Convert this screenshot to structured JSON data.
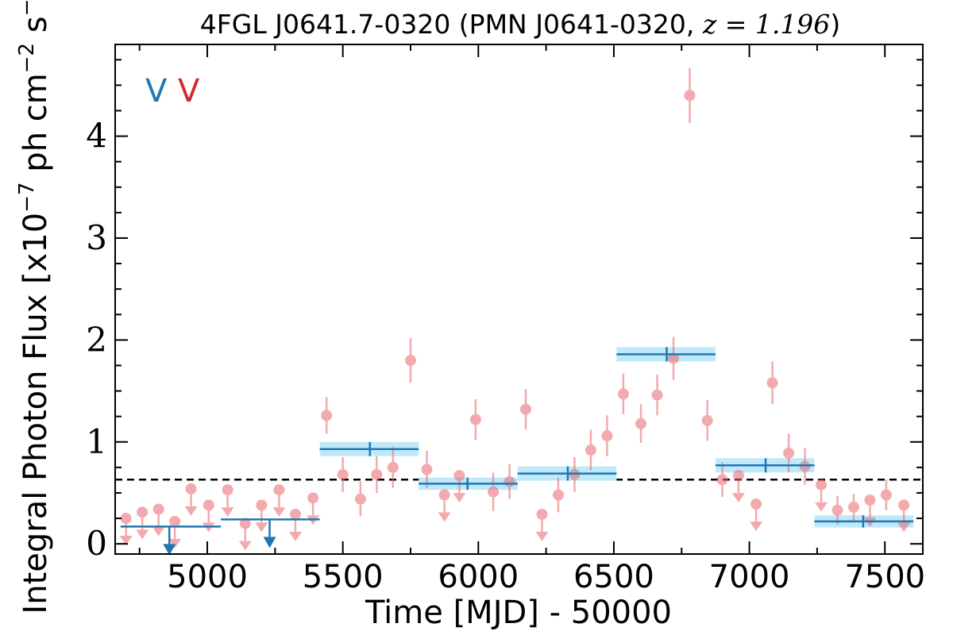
{
  "chart_data": {
    "type": "scatter",
    "title": "4FGL J0641.7-0320 (PMN J0641-0320, ",
    "title_redshift": "z = 1.196",
    "title_close": ")",
    "xlabel": "Time [MJD] - 50000",
    "ylabel": "Integral Photon Flux [x10",
    "ylabel_exp1": "−7",
    "ylabel_mid": " ph cm",
    "ylabel_exp2": "−2",
    "ylabel_mid2": " s",
    "ylabel_exp3": "−1",
    "ylabel_close": "]",
    "xlim": [
      4660,
      7640
    ],
    "ylim": [
      -0.1,
      4.9
    ],
    "xticks": [
      5000,
      5500,
      6000,
      6500,
      7000,
      7500
    ],
    "xticklabels": [
      "5000",
      "5500",
      "6000",
      "6500",
      "7000",
      "7500"
    ],
    "yticks": [
      0,
      1,
      2,
      3,
      4
    ],
    "yticklabels": [
      "0",
      "1",
      "2",
      "3",
      "4"
    ],
    "legend": [
      {
        "label": "V",
        "color": "#1f77b4"
      },
      {
        "label": "V",
        "color": "#d62728"
      }
    ],
    "mean_flux": 0.63,
    "colors": {
      "monthly": "#e8666c",
      "band_line": "#1f77b4",
      "band_fill": "#bfe9f9",
      "mean_line": "#000000"
    },
    "monthly_detections": [
      {
        "x": 5440,
        "y": 1.26,
        "err": 0.18
      },
      {
        "x": 5500,
        "y": 0.68,
        "err": 0.17
      },
      {
        "x": 5565,
        "y": 0.44,
        "err": 0.17
      },
      {
        "x": 5625,
        "y": 0.68,
        "err": 0.18
      },
      {
        "x": 5685,
        "y": 0.75,
        "err": 0.2
      },
      {
        "x": 5750,
        "y": 1.8,
        "err": 0.22
      },
      {
        "x": 5810,
        "y": 0.73,
        "err": 0.18
      },
      {
        "x": 5990,
        "y": 1.22,
        "err": 0.2
      },
      {
        "x": 6055,
        "y": 0.51,
        "err": 0.19
      },
      {
        "x": 6115,
        "y": 0.61,
        "err": 0.17
      },
      {
        "x": 6175,
        "y": 1.32,
        "err": 0.2
      },
      {
        "x": 6295,
        "y": 0.48,
        "err": 0.17
      },
      {
        "x": 6355,
        "y": 0.68,
        "err": 0.17
      },
      {
        "x": 6415,
        "y": 0.92,
        "err": 0.2
      },
      {
        "x": 6475,
        "y": 1.06,
        "err": 0.2
      },
      {
        "x": 6535,
        "y": 1.47,
        "err": 0.2
      },
      {
        "x": 6600,
        "y": 1.18,
        "err": 0.19
      },
      {
        "x": 6660,
        "y": 1.46,
        "err": 0.2
      },
      {
        "x": 6720,
        "y": 1.82,
        "err": 0.21
      },
      {
        "x": 6780,
        "y": 4.4,
        "err": 0.27
      },
      {
        "x": 6845,
        "y": 1.21,
        "err": 0.2
      },
      {
        "x": 6900,
        "y": 0.63,
        "err": 0.17
      },
      {
        "x": 7085,
        "y": 1.58,
        "err": 0.21
      },
      {
        "x": 7145,
        "y": 0.89,
        "err": 0.19
      },
      {
        "x": 7205,
        "y": 0.76,
        "err": 0.18
      },
      {
        "x": 7325,
        "y": 0.33,
        "err": 0.14
      },
      {
        "x": 7385,
        "y": 0.36,
        "err": 0.13
      },
      {
        "x": 7505,
        "y": 0.48,
        "err": 0.15
      }
    ],
    "monthly_upper_limits": [
      {
        "x": 4700,
        "y": 0.25
      },
      {
        "x": 4760,
        "y": 0.31
      },
      {
        "x": 4820,
        "y": 0.34
      },
      {
        "x": 4880,
        "y": 0.22
      },
      {
        "x": 4940,
        "y": 0.54
      },
      {
        "x": 5005,
        "y": 0.38
      },
      {
        "x": 5075,
        "y": 0.53
      },
      {
        "x": 5140,
        "y": 0.2
      },
      {
        "x": 5200,
        "y": 0.38
      },
      {
        "x": 5265,
        "y": 0.53
      },
      {
        "x": 5325,
        "y": 0.29
      },
      {
        "x": 5390,
        "y": 0.45
      },
      {
        "x": 5875,
        "y": 0.48
      },
      {
        "x": 5930,
        "y": 0.67
      },
      {
        "x": 6235,
        "y": 0.29
      },
      {
        "x": 6960,
        "y": 0.67
      },
      {
        "x": 7025,
        "y": 0.39
      },
      {
        "x": 7265,
        "y": 0.58
      },
      {
        "x": 7445,
        "y": 0.43
      },
      {
        "x": 7570,
        "y": 0.38
      }
    ],
    "band_bins": [
      {
        "x0": 4680,
        "x1": 5050,
        "xc": 4860,
        "y": 0.17,
        "err": 0.0,
        "upper_limit": true
      },
      {
        "x0": 5050,
        "x1": 5415,
        "xc": 5230,
        "y": 0.24,
        "err": 0.0,
        "upper_limit": true
      },
      {
        "x0": 5415,
        "x1": 5780,
        "xc": 5600,
        "y": 0.93,
        "err": 0.07,
        "upper_limit": false
      },
      {
        "x0": 5780,
        "x1": 6145,
        "xc": 5960,
        "y": 0.59,
        "err": 0.06,
        "upper_limit": false
      },
      {
        "x0": 6145,
        "x1": 6510,
        "xc": 6330,
        "y": 0.69,
        "err": 0.07,
        "upper_limit": false
      },
      {
        "x0": 6510,
        "x1": 6875,
        "xc": 6695,
        "y": 1.86,
        "err": 0.07,
        "upper_limit": false
      },
      {
        "x0": 6875,
        "x1": 7240,
        "xc": 7060,
        "y": 0.77,
        "err": 0.07,
        "upper_limit": false
      },
      {
        "x0": 7240,
        "x1": 7605,
        "xc": 7420,
        "y": 0.22,
        "err": 0.06,
        "upper_limit": false
      }
    ]
  }
}
